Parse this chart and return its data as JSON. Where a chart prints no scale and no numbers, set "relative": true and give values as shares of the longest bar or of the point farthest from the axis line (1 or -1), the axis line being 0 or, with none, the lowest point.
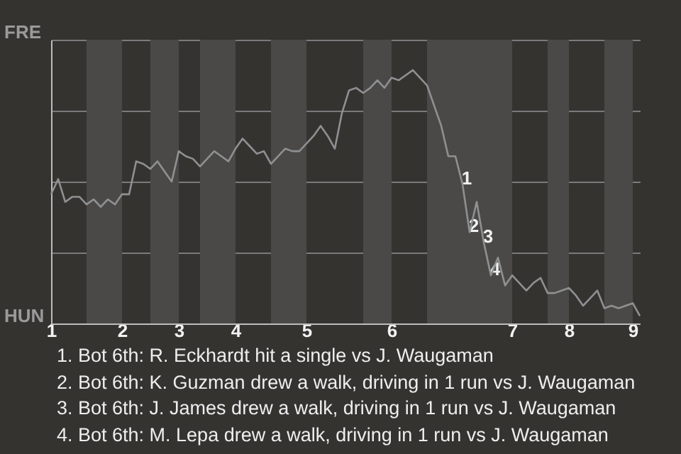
{
  "chart_data": {
    "type": "line",
    "categories": [
      "1",
      null,
      null,
      null,
      null,
      null,
      null,
      null,
      null,
      null,
      "2",
      null,
      null,
      null,
      null,
      null,
      null,
      null,
      "3",
      null,
      null,
      null,
      null,
      null,
      null,
      null,
      "4",
      null,
      null,
      null,
      null,
      null,
      null,
      null,
      null,
      null,
      "5",
      null,
      null,
      null,
      null,
      null,
      null,
      null,
      null,
      null,
      null,
      null,
      "6",
      null,
      null,
      null,
      null,
      null,
      null,
      null,
      null,
      null,
      null,
      null,
      null,
      null,
      null,
      null,
      null,
      "7",
      null,
      null,
      null,
      null,
      null,
      null,
      null,
      "8",
      null,
      null,
      null,
      null,
      null,
      null,
      null,
      null,
      "9",
      null
    ],
    "series": [
      {
        "color": "#8e9092",
        "values": [
          0.51,
          0.57,
          0.48,
          0.5,
          0.5,
          0.47,
          0.49,
          0.46,
          0.49,
          0.47,
          0.51,
          0.51,
          0.64,
          0.63,
          0.61,
          0.64,
          0.6,
          0.56,
          0.68,
          0.66,
          0.65,
          0.62,
          0.65,
          0.68,
          0.66,
          0.64,
          0.69,
          0.73,
          0.7,
          0.67,
          0.68,
          0.63,
          0.66,
          0.69,
          0.68,
          0.68,
          0.71,
          0.74,
          0.78,
          0.74,
          0.69,
          0.83,
          0.92,
          0.93,
          0.91,
          0.93,
          0.96,
          0.93,
          0.97,
          0.96,
          0.98,
          1,
          0.97,
          0.94,
          0.86,
          0.78,
          0.66,
          0.66,
          0.55,
          0.36,
          0.48,
          0.32,
          0.19,
          0.26,
          0.15,
          0.19,
          0.16,
          0.13,
          0.16,
          0.18,
          0.12,
          0.12,
          0.13,
          0.14,
          0.11,
          0.07,
          0.1,
          0.13,
          0.06,
          0.07,
          0.06,
          0.07,
          0.08,
          0.03
        ]
      }
    ],
    "relative": true,
    "grid": "y",
    "annotations": [
      {
        "text": "FRE"
      },
      {
        "text": "HUN"
      },
      {
        "text": "1",
        "y": 0.55
      },
      {
        "text": "2",
        "y": 0.36
      },
      {
        "text": "3",
        "y": 0.32
      },
      {
        "text": "4",
        "y": 0.19
      },
      "1. Bot 6th: R. Eckhardt hit a single vs J. Waugaman",
      "2. Bot 6th: K. Guzman drew a walk, driving in 1 run vs J. Waugaman",
      "3. Bot 6th: J. James drew a walk, driving in 1 run vs J. Waugaman",
      "4. Bot 6th: M. Lepa drew a walk, driving in 1 run vs J. Waugaman"
    ]
  }
}
